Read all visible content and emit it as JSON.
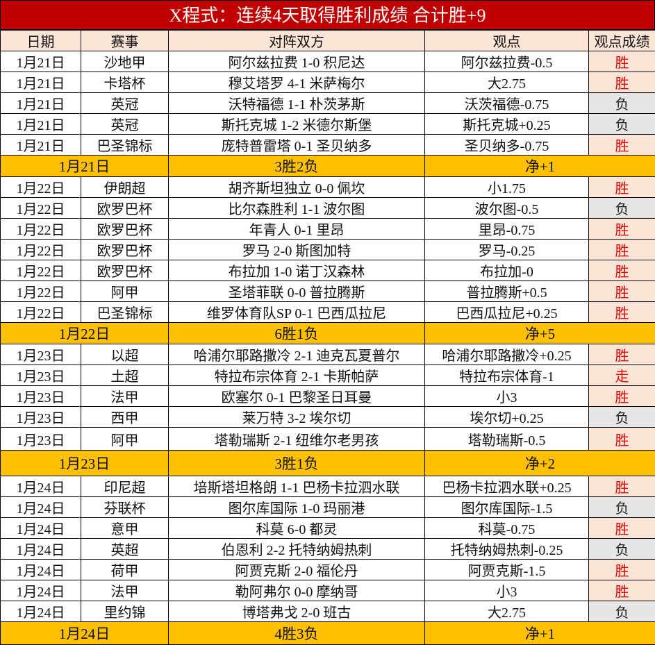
{
  "title": "X程式：连续4天取得胜利成绩 合计胜+9",
  "headers": [
    "日期",
    "赛事",
    "对阵双方",
    "观点",
    "观点成绩"
  ],
  "colors": {
    "title_bg": "#c00000",
    "header_bg": "#fce4d6",
    "summary_bg": "#ffc000",
    "win_text": "#e00000",
    "loss_bg": "#e7e6e6"
  },
  "days": [
    {
      "rows": [
        [
          "1月21日",
          "沙地甲",
          "阿尔兹拉费 1-0 积尼达",
          "阿尔兹拉费-0.5",
          "胜"
        ],
        [
          "1月21日",
          "卡塔杯",
          "穆艾塔罗 4-1 米萨梅尔",
          "大2.75",
          "胜"
        ],
        [
          "1月21日",
          "英冠",
          "沃特福德 1-1 朴茨茅斯",
          "沃茨福德-0.75",
          "负"
        ],
        [
          "1月21日",
          "英冠",
          "斯托克城 1-2 米德尔斯堡",
          "斯托克城+0.25",
          "负"
        ],
        [
          "1月21日",
          "巴圣锦标",
          "庞特普雷塔 0-1 圣贝纳多",
          "圣贝纳多-0.75",
          "胜"
        ]
      ],
      "summary": {
        "date": "1月21日",
        "record": "3胜2负",
        "net": "净+1"
      }
    },
    {
      "rows": [
        [
          "1月22日",
          "伊朗超",
          "胡齐斯坦独立 0-0 佩坎",
          "小1.75",
          "胜"
        ],
        [
          "1月22日",
          "欧罗巴杯",
          "比尔森胜利 1-1 波尔图",
          "波尔图-0.5",
          "负"
        ],
        [
          "1月22日",
          "欧罗巴杯",
          "年青人 0-1 里昂",
          "里昂-0.75",
          "胜"
        ],
        [
          "1月22日",
          "欧罗巴杯",
          "罗马 2-0 斯图加特",
          "罗马-0.25",
          "胜"
        ],
        [
          "1月22日",
          "欧罗巴杯",
          "布拉加 1-0 诺丁汉森林",
          "布拉加-0",
          "胜"
        ],
        [
          "1月22日",
          "阿甲",
          "圣塔菲联 0-0 普拉腾斯",
          "普拉腾斯+0.5",
          "胜"
        ],
        [
          "1月22日",
          "巴圣锦标",
          "维罗体育队SP 0-1 巴西瓜拉尼",
          "巴西瓜拉尼+0.25",
          "胜"
        ]
      ],
      "summary": {
        "date": "1月22日",
        "record": "6胜1负",
        "net": "净+5"
      }
    },
    {
      "rows": [
        [
          "1月23日",
          "以超",
          "哈浦尔耶路撒冷 2-1 迪克瓦夏普尔",
          "哈浦尔耶路撒冷+0.25",
          "胜"
        ],
        [
          "1月23日",
          "土超",
          "特拉布宗体育 2-1 卡斯帕萨",
          "特拉布宗体育-1",
          "走"
        ],
        [
          "1月23日",
          "法甲",
          "欧塞尔 0-1 巴黎圣日耳曼",
          "小3",
          "胜"
        ],
        [
          "1月23日",
          "西甲",
          "莱万特 3-2 埃尔切",
          "埃尔切+0.25",
          "负"
        ],
        [
          "1月23日",
          "阿甲",
          "塔勒瑞斯 2-1 纽维尔老男孩",
          "塔勒瑞斯-0.5",
          "胜"
        ]
      ],
      "summary": {
        "date": "1月23日",
        "record": "3胜1负",
        "net": "净+2"
      }
    },
    {
      "rows": [
        [
          "1月24日",
          "印尼超",
          "培斯塔坦格朗 1-1 巴杨卡拉泗水联",
          "巴杨卡拉泗水联+0.25",
          "胜"
        ],
        [
          "1月24日",
          "芬联杯",
          "图尔库国际 1-0 玛丽港",
          "图尔库国际-1.5",
          "负"
        ],
        [
          "1月24日",
          "意甲",
          "科莫 6-0 都灵",
          "科莫-0.75",
          "胜"
        ],
        [
          "1月24日",
          "英超",
          "伯恩利 2-2 托特纳姆热刺",
          "托特纳姆热刺-0.25",
          "负"
        ],
        [
          "1月24日",
          "荷甲",
          "阿贾克斯 2-0 福伦丹",
          "阿贾克斯-1.5",
          "胜"
        ],
        [
          "1月24日",
          "法甲",
          "勒阿弗尔 0-0 摩纳哥",
          "小3",
          "胜"
        ],
        [
          "1月24日",
          "里约锦",
          "博塔弗戈 2-0 班古",
          "大2.75",
          "负"
        ]
      ],
      "summary": {
        "date": "1月24日",
        "record": "4胜3负",
        "net": "净+1"
      }
    }
  ]
}
